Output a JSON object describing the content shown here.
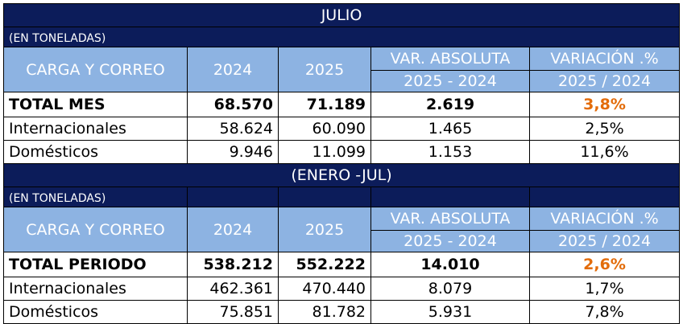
{
  "sections": [
    {
      "title": "JULIO",
      "unit": "(EN TONELADAS)",
      "header": {
        "label": "CARGA Y CORREO",
        "year1": "2024",
        "year2": "2025",
        "abs": "VAR. ABSOLUTA",
        "abs_range": "2025 - 2024",
        "pct": "VARIACIÓN .%",
        "pct_range": "2025 / 2024"
      },
      "rows": [
        [
          "TOTAL MES",
          "68.570",
          "71.189",
          "2.619",
          "3,8%"
        ],
        [
          "Internacionales",
          "58.624",
          "60.090",
          "1.465",
          "2,5%"
        ],
        [
          "Domésticos",
          "9.946",
          "11.099",
          "1.153",
          "11,6%"
        ]
      ]
    },
    {
      "title": "(ENERO -JUL)",
      "unit": "(EN TONELADAS)",
      "header": {
        "label": "CARGA Y CORREO",
        "year1": "2024",
        "year2": "2025",
        "abs": "VAR. ABSOLUTA",
        "abs_range": "2025 - 2024",
        "pct": "VARIACIÓN .%",
        "pct_range": "2025 / 2024"
      },
      "rows": [
        [
          "TOTAL PERIODO",
          "538.212",
          "552.222",
          "14.010",
          "2,6%"
        ],
        [
          "Internacionales",
          "462.361",
          "470.440",
          "8.079",
          "1,7%"
        ],
        [
          "Domésticos",
          "75.851",
          "81.782",
          "5.931",
          "7,8%"
        ]
      ]
    }
  ]
}
